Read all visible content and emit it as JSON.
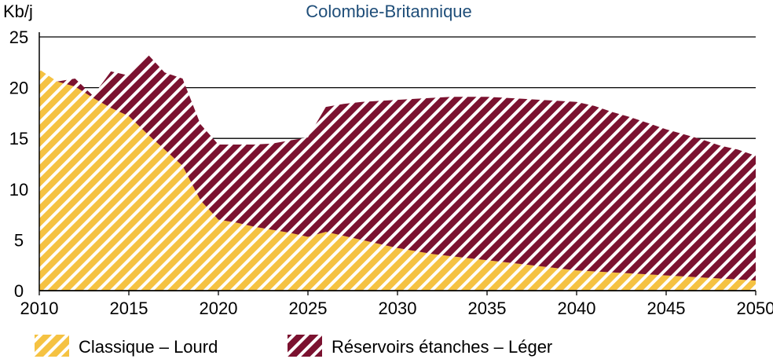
{
  "chart_data": {
    "type": "area",
    "title": "Colombie-Britannique",
    "ylabel": "Kb/j",
    "xlabel": "",
    "xlim": [
      2010,
      2050
    ],
    "ylim": [
      0,
      25
    ],
    "x_ticks": [
      "2010",
      "2015",
      "2020",
      "2025",
      "2030",
      "2035",
      "2040",
      "2045",
      "2050"
    ],
    "y_ticks": [
      "0",
      "5",
      "10",
      "15",
      "20",
      "25"
    ],
    "grid": "horizontal",
    "legend_position": "bottom",
    "stacked": true,
    "x": [
      2010,
      2011,
      2012,
      2013,
      2014,
      2015,
      2016,
      2017,
      2018,
      2019,
      2020,
      2021,
      2022,
      2023,
      2024,
      2025,
      2026,
      2027,
      2028,
      2029,
      2030,
      2031,
      2032,
      2033,
      2034,
      2035,
      2036,
      2037,
      2038,
      2039,
      2040,
      2041,
      2042,
      2043,
      2044,
      2045,
      2046,
      2047,
      2048,
      2049,
      2050
    ],
    "series": [
      {
        "name": "Classique – Lourd",
        "color": "#f5c242",
        "pattern": "hatch-light",
        "values": [
          21.8,
          20.6,
          20.1,
          19.0,
          18.0,
          17.2,
          15.5,
          13.9,
          12.3,
          8.9,
          7.0,
          6.7,
          6.3,
          6.0,
          5.7,
          5.3,
          5.8,
          5.4,
          5.0,
          4.6,
          4.2,
          3.9,
          3.6,
          3.4,
          3.2,
          3.0,
          2.8,
          2.6,
          2.4,
          2.2,
          2.0,
          1.9,
          1.8,
          1.7,
          1.6,
          1.5,
          1.4,
          1.3,
          1.2,
          1.1,
          1.0
        ]
      },
      {
        "name": "Réservoirs étanches – Léger",
        "color": "#7b1230",
        "pattern": "hatch-dark",
        "values": [
          0.0,
          0.0,
          0.8,
          0.2,
          3.6,
          4.0,
          7.9,
          7.6,
          8.6,
          7.5,
          7.4,
          7.7,
          8.1,
          8.5,
          9.1,
          9.8,
          12.3,
          13.0,
          13.6,
          14.1,
          14.6,
          15.0,
          15.4,
          15.7,
          15.9,
          16.1,
          16.2,
          16.3,
          16.4,
          16.5,
          16.6,
          16.3,
          15.8,
          15.4,
          14.9,
          14.4,
          14.0,
          13.6,
          13.1,
          12.8,
          12.3
        ]
      }
    ]
  }
}
